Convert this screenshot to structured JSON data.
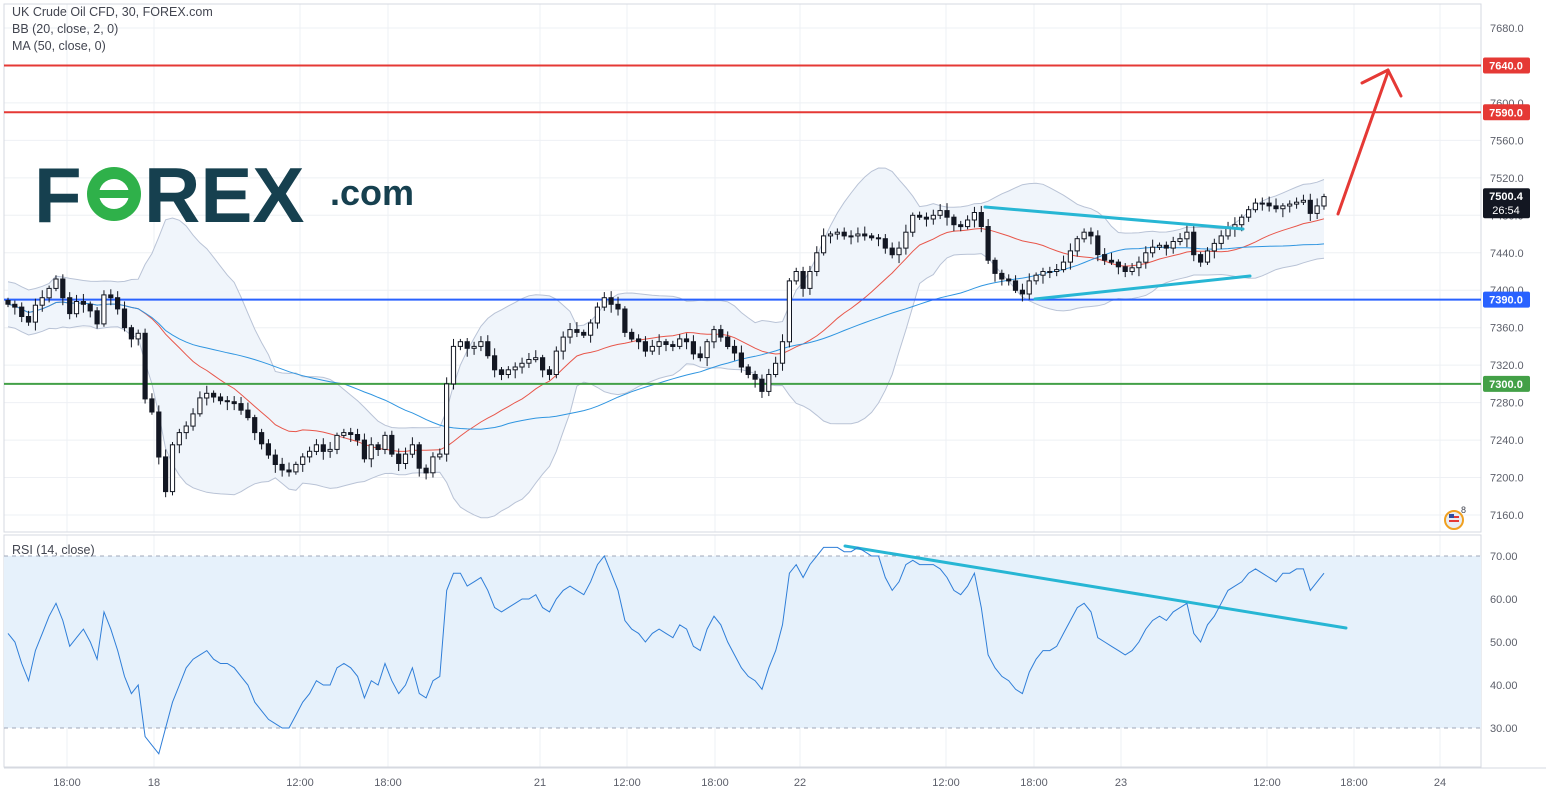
{
  "header": {
    "symbol_line": "UK Crude Oil CFD, 30, FOREX.com",
    "bb_line": "BB (20, close, 2, 0)",
    "ma_line": "MA (50, close, 0)"
  },
  "logo": {
    "text_f": "F",
    "text_rex": "REX",
    "text_com": ".com",
    "color_dark": "#16404f",
    "color_green": "#2fb14a"
  },
  "rsi_legend": "RSI (14, close)",
  "notification_badge": "8",
  "colors": {
    "up_candle": "#ffffff",
    "down_candle": "#131722",
    "wick": "#131722",
    "bb_line": "#b9c3d6",
    "bb_fill": "#f0f5fb",
    "ma50": "#2f95e0",
    "bb_basis": "#e8564a",
    "resistance": "#e53935",
    "support_blue": "#2962ff",
    "support_green": "#43a047",
    "trend": "#27b6d4",
    "arrow": "#e53935",
    "rsi_line": "#2f7ed8",
    "rsi_band": "#e6f1fb",
    "axis_text": "#5d606b"
  },
  "chart_data": [
    {
      "type": "candlestick",
      "title": "UK Crude Oil CFD, 30, FOREX.com",
      "ylim": [
        7140,
        7700
      ],
      "y_ticks": [
        "7680.0",
        "7640.0",
        "7600.0",
        "7560.0",
        "7520.0",
        "7480.0",
        "7440.0",
        "7400.0",
        "7360.0",
        "7320.0",
        "7280.0",
        "7240.0",
        "7200.0",
        "7160.0"
      ],
      "x_ticks": [
        "18:00",
        "18",
        "12:00",
        "18:00",
        "21",
        "12:00",
        "18:00",
        "22",
        "12:00",
        "18:00",
        "23",
        "12:00",
        "18:00",
        "24"
      ],
      "price_labels": [
        {
          "value": 7640.0,
          "text": "7640.0",
          "color": "#e53935"
        },
        {
          "value": 7590.0,
          "text": "7590.0",
          "color": "#e53935"
        },
        {
          "value": 7500.4,
          "text": "7500.4",
          "color": "#131722"
        },
        {
          "value": 7390.0,
          "text": "7390.0",
          "color": "#2962ff"
        },
        {
          "value": 7300.0,
          "text": "7300.0",
          "color": "#43a047"
        }
      ],
      "countdown": "26:54",
      "horizontal_levels": [
        {
          "value": 7640,
          "color": "#e53935"
        },
        {
          "value": 7590,
          "color": "#e53935"
        },
        {
          "value": 7390,
          "color": "#2962ff"
        },
        {
          "value": 7300,
          "color": "#43a047"
        }
      ],
      "close": [
        7385,
        7382,
        7372,
        7366,
        7384,
        7392,
        7402,
        7412,
        7392,
        7375,
        7388,
        7385,
        7378,
        7364,
        7395,
        7392,
        7380,
        7360,
        7348,
        7354,
        7284,
        7270,
        7222,
        7185,
        7235,
        7248,
        7255,
        7268,
        7285,
        7290,
        7286,
        7282,
        7281,
        7279,
        7272,
        7264,
        7248,
        7236,
        7224,
        7214,
        7208,
        7206,
        7214,
        7222,
        7228,
        7235,
        7228,
        7230,
        7245,
        7248,
        7246,
        7240,
        7220,
        7235,
        7230,
        7245,
        7225,
        7215,
        7225,
        7235,
        7210,
        7205,
        7222,
        7225,
        7300,
        7340,
        7345,
        7338,
        7340,
        7345,
        7330,
        7315,
        7310,
        7315,
        7318,
        7322,
        7326,
        7328,
        7315,
        7310,
        7335,
        7350,
        7358,
        7355,
        7352,
        7365,
        7382,
        7392,
        7385,
        7380,
        7355,
        7348,
        7345,
        7335,
        7340,
        7345,
        7342,
        7340,
        7348,
        7345,
        7332,
        7328,
        7345,
        7358,
        7350,
        7340,
        7333,
        7318,
        7310,
        7305,
        7292,
        7310,
        7322,
        7345,
        7410,
        7420,
        7402,
        7420,
        7440,
        7458,
        7460,
        7462,
        7458,
        7458,
        7460,
        7458,
        7456,
        7455,
        7445,
        7438,
        7445,
        7462,
        7480,
        7478,
        7476,
        7480,
        7485,
        7478,
        7470,
        7468,
        7475,
        7483,
        7468,
        7432,
        7418,
        7412,
        7410,
        7400,
        7396,
        7410,
        7416,
        7420,
        7420,
        7422,
        7430,
        7442,
        7455,
        7462,
        7458,
        7438,
        7432,
        7430,
        7425,
        7420,
        7424,
        7430,
        7440,
        7446,
        7448,
        7445,
        7452,
        7455,
        7462,
        7438,
        7430,
        7442,
        7450,
        7458,
        7466,
        7470,
        7478,
        7486,
        7493,
        7493,
        7490,
        7487,
        7490,
        7492,
        7494,
        7496,
        7482,
        7490,
        7500
      ],
      "rsi": [
        52,
        50,
        45,
        41,
        48,
        52,
        56,
        59,
        55,
        49,
        51,
        53,
        50,
        46,
        57,
        53,
        48,
        42,
        38,
        40,
        28,
        26,
        24,
        30,
        36,
        40,
        44,
        46,
        47,
        48,
        46,
        45,
        45,
        44,
        42,
        40,
        36,
        34,
        32,
        31,
        30,
        30,
        33,
        36,
        38,
        41,
        40,
        40,
        44,
        45,
        44,
        42,
        37,
        41,
        40,
        45,
        41,
        38,
        40,
        44,
        38,
        37,
        41,
        42,
        62,
        66,
        66,
        63,
        64,
        65,
        62,
        58,
        57,
        58,
        59,
        60,
        60,
        61,
        58,
        57,
        60,
        62,
        63,
        62,
        61,
        64,
        68,
        70,
        66,
        62,
        55,
        53,
        52,
        50,
        52,
        53,
        52,
        51,
        54,
        53,
        49,
        48,
        53,
        56,
        54,
        50,
        47,
        44,
        42,
        41,
        39,
        44,
        48,
        54,
        66,
        68,
        65,
        68,
        70,
        72,
        72,
        72,
        71,
        71,
        72,
        71,
        70,
        70,
        65,
        62,
        64,
        68,
        69,
        68,
        68,
        68,
        67,
        65,
        62,
        61,
        63,
        66,
        58,
        47,
        44,
        42,
        41,
        39,
        38,
        43,
        46,
        48,
        48,
        49,
        52,
        55,
        58,
        59,
        57,
        51,
        50,
        49,
        48,
        47,
        48,
        50,
        53,
        55,
        56,
        55,
        57,
        58,
        59,
        52,
        50,
        54,
        56,
        59,
        62,
        63,
        64,
        66,
        67,
        66,
        65,
        64,
        66,
        66,
        67,
        67,
        62,
        64,
        66
      ],
      "series_names": [
        "BB (20, close, 2, 0)",
        "MA (50, close, 0)"
      ]
    },
    {
      "type": "line",
      "title": "RSI (14, close)",
      "ylim": [
        22,
        74
      ],
      "y_ticks": [
        "70.00",
        "60.00",
        "50.00",
        "40.00",
        "30.00"
      ],
      "band": [
        30,
        70
      ]
    }
  ]
}
